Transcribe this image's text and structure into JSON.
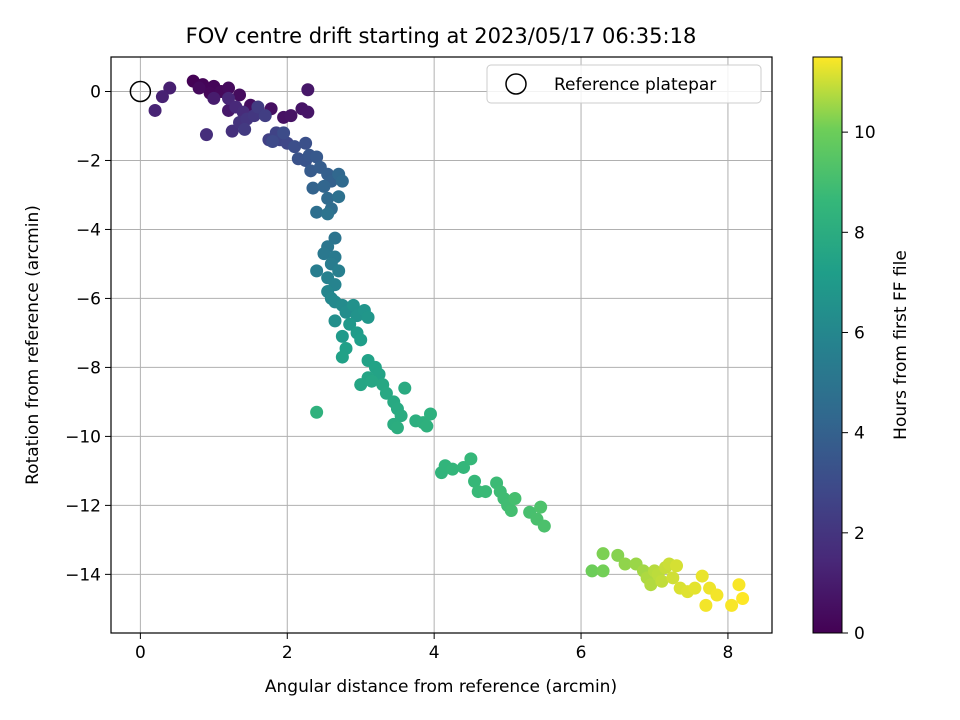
{
  "chart_data": {
    "type": "scatter",
    "title": "FOV centre drift starting at 2023/05/17 06:35:18",
    "xlabel": "Angular distance from reference (arcmin)",
    "ylabel": "Rotation from reference (arcmin)",
    "xlim": [
      -0.4,
      8.6
    ],
    "ylim": [
      -15.7,
      1.0
    ],
    "x_ticks": [
      0,
      2,
      4,
      6,
      8
    ],
    "y_ticks": [
      0,
      -2,
      -4,
      -6,
      -8,
      -10,
      -12,
      -14
    ],
    "x_tick_labels": [
      "0",
      "2",
      "4",
      "6",
      "8"
    ],
    "y_tick_labels": [
      "0",
      "−2",
      "−4",
      "−6",
      "−8",
      "−10",
      "−12",
      "−14"
    ],
    "grid": true,
    "colormap": "viridis",
    "colorbar": {
      "label": "Hours from first FF file",
      "range": [
        0,
        11.5
      ],
      "ticks": [
        0,
        2,
        4,
        6,
        8,
        10
      ],
      "tick_labels": [
        "0",
        "2",
        "4",
        "6",
        "8",
        "10"
      ]
    },
    "legend": {
      "placement": "top-right",
      "entries": [
        {
          "label": "Reference platepar",
          "marker": "open-circle"
        }
      ]
    },
    "reference_point": {
      "x": 0,
      "y": 0
    },
    "series": [
      {
        "marker": "filled-circle",
        "points": [
          [
            0.72,
            0.3,
            0.05
          ],
          [
            0.85,
            0.2,
            0.1
          ],
          [
            1.0,
            0.15,
            0.15
          ],
          [
            0.95,
            -0.05,
            0.2
          ],
          [
            1.1,
            0.0,
            0.25
          ],
          [
            0.8,
            0.1,
            0.3
          ],
          [
            1.2,
            0.1,
            0.35
          ],
          [
            1.35,
            -0.1,
            0.4
          ],
          [
            1.5,
            -0.4,
            0.45
          ],
          [
            1.6,
            -0.5,
            0.5
          ],
          [
            1.78,
            -0.5,
            0.55
          ],
          [
            1.95,
            -0.75,
            0.6
          ],
          [
            2.05,
            -0.7,
            0.65
          ],
          [
            2.2,
            -0.5,
            0.7
          ],
          [
            2.28,
            -0.6,
            0.75
          ],
          [
            2.28,
            0.05,
            0.8
          ],
          [
            1.2,
            -0.55,
            0.9
          ],
          [
            1.0,
            -0.2,
            1.0
          ],
          [
            0.4,
            0.1,
            1.1
          ],
          [
            0.3,
            -0.15,
            1.2
          ],
          [
            0.2,
            -0.55,
            1.3
          ],
          [
            1.2,
            -0.2,
            1.4
          ],
          [
            1.3,
            -0.45,
            1.5
          ],
          [
            1.4,
            -0.6,
            1.6
          ],
          [
            0.9,
            -1.25,
            1.7
          ],
          [
            1.25,
            -1.15,
            1.8
          ],
          [
            1.35,
            -0.9,
            1.9
          ],
          [
            1.45,
            -0.8,
            2.0
          ],
          [
            1.55,
            -0.7,
            2.1
          ],
          [
            1.42,
            -1.1,
            2.2
          ],
          [
            1.6,
            -0.45,
            2.3
          ],
          [
            1.7,
            -0.7,
            2.4
          ],
          [
            1.75,
            -1.4,
            2.5
          ],
          [
            1.85,
            -1.2,
            2.6
          ],
          [
            1.9,
            -1.4,
            2.7
          ],
          [
            2.0,
            -1.5,
            2.8
          ],
          [
            1.8,
            -1.45,
            2.9
          ],
          [
            1.95,
            -1.2,
            3.0
          ],
          [
            2.1,
            -1.6,
            3.1
          ],
          [
            2.25,
            -1.5,
            3.2
          ],
          [
            2.15,
            -1.95,
            3.3
          ],
          [
            2.25,
            -2.0,
            3.4
          ],
          [
            2.3,
            -1.85,
            3.5
          ],
          [
            2.4,
            -1.9,
            3.6
          ],
          [
            2.32,
            -2.3,
            3.7
          ],
          [
            2.45,
            -2.2,
            3.8
          ],
          [
            2.55,
            -2.4,
            3.9
          ],
          [
            2.6,
            -2.6,
            4.0
          ],
          [
            2.35,
            -2.8,
            4.1
          ],
          [
            2.5,
            -2.75,
            4.2
          ],
          [
            2.7,
            -2.4,
            4.3
          ],
          [
            2.75,
            -2.6,
            4.4
          ],
          [
            2.55,
            -3.1,
            4.5
          ],
          [
            2.6,
            -3.4,
            4.6
          ],
          [
            2.4,
            -3.5,
            4.7
          ],
          [
            2.7,
            -3.05,
            4.8
          ],
          [
            2.55,
            -3.55,
            4.9
          ],
          [
            2.65,
            -4.25,
            5.0
          ],
          [
            2.55,
            -4.5,
            5.1
          ],
          [
            2.5,
            -4.7,
            5.2
          ],
          [
            2.65,
            -4.8,
            5.3
          ],
          [
            2.6,
            -5.0,
            5.4
          ],
          [
            2.4,
            -5.2,
            5.5
          ],
          [
            2.7,
            -5.2,
            5.6
          ],
          [
            2.55,
            -5.4,
            5.7
          ],
          [
            2.65,
            -5.6,
            5.8
          ],
          [
            2.55,
            -5.8,
            5.9
          ],
          [
            2.6,
            -6.0,
            6.0
          ],
          [
            2.65,
            -6.1,
            6.1
          ],
          [
            2.75,
            -6.2,
            6.2
          ],
          [
            2.8,
            -6.4,
            6.3
          ],
          [
            2.65,
            -6.65,
            6.4
          ],
          [
            2.9,
            -6.2,
            6.5
          ],
          [
            2.95,
            -6.5,
            6.6
          ],
          [
            3.05,
            -6.35,
            6.7
          ],
          [
            3.1,
            -6.55,
            6.8
          ],
          [
            2.85,
            -6.75,
            6.9
          ],
          [
            2.75,
            -7.1,
            7.0
          ],
          [
            2.95,
            -7.0,
            7.1
          ],
          [
            3.0,
            -7.2,
            7.2
          ],
          [
            2.8,
            -7.45,
            7.3
          ],
          [
            2.75,
            -7.7,
            7.35
          ],
          [
            3.1,
            -7.8,
            7.4
          ],
          [
            3.2,
            -8.0,
            7.45
          ],
          [
            3.25,
            -8.2,
            7.5
          ],
          [
            3.1,
            -8.3,
            7.55
          ],
          [
            3.0,
            -8.5,
            7.6
          ],
          [
            3.15,
            -8.4,
            7.65
          ],
          [
            3.3,
            -8.5,
            7.7
          ],
          [
            3.35,
            -8.75,
            7.75
          ],
          [
            3.45,
            -9.0,
            7.8
          ],
          [
            3.5,
            -9.2,
            7.85
          ],
          [
            3.6,
            -8.6,
            7.9
          ],
          [
            3.55,
            -9.4,
            7.95
          ],
          [
            3.45,
            -9.65,
            8.0
          ],
          [
            3.5,
            -9.75,
            8.05
          ],
          [
            3.75,
            -9.55,
            8.1
          ],
          [
            3.85,
            -9.6,
            8.15
          ],
          [
            3.95,
            -9.35,
            8.2
          ],
          [
            3.9,
            -9.7,
            8.25
          ],
          [
            2.4,
            -9.3,
            8.3
          ],
          [
            4.1,
            -11.05,
            8.4
          ],
          [
            4.15,
            -10.85,
            8.45
          ],
          [
            4.25,
            -10.95,
            8.5
          ],
          [
            4.4,
            -10.9,
            8.55
          ],
          [
            4.5,
            -10.65,
            8.6
          ],
          [
            4.55,
            -11.3,
            8.65
          ],
          [
            4.6,
            -11.6,
            8.7
          ],
          [
            4.7,
            -11.6,
            8.75
          ],
          [
            4.85,
            -11.35,
            8.8
          ],
          [
            4.9,
            -11.6,
            8.85
          ],
          [
            4.95,
            -11.8,
            8.9
          ],
          [
            5.0,
            -12.0,
            8.95
          ],
          [
            5.05,
            -12.15,
            9.0
          ],
          [
            5.1,
            -11.8,
            9.05
          ],
          [
            5.3,
            -12.2,
            9.1
          ],
          [
            5.4,
            -12.4,
            9.15
          ],
          [
            5.5,
            -12.6,
            9.2
          ],
          [
            5.45,
            -12.05,
            9.25
          ],
          [
            6.15,
            -13.9,
            10.0
          ],
          [
            6.3,
            -13.9,
            10.1
          ],
          [
            6.3,
            -13.4,
            10.2
          ],
          [
            6.5,
            -13.45,
            10.3
          ],
          [
            6.6,
            -13.7,
            10.4
          ],
          [
            6.75,
            -13.7,
            10.5
          ],
          [
            6.85,
            -13.9,
            10.6
          ],
          [
            6.9,
            -14.1,
            10.7
          ],
          [
            6.95,
            -14.3,
            10.75
          ],
          [
            7.0,
            -13.9,
            10.8
          ],
          [
            7.05,
            -14.0,
            10.85
          ],
          [
            7.1,
            -14.2,
            10.9
          ],
          [
            7.15,
            -13.8,
            10.95
          ],
          [
            7.2,
            -13.7,
            11.0
          ],
          [
            7.25,
            -14.1,
            11.05
          ],
          [
            7.3,
            -13.75,
            11.1
          ],
          [
            7.35,
            -14.4,
            11.15
          ],
          [
            7.45,
            -14.5,
            11.2
          ],
          [
            7.55,
            -14.4,
            11.25
          ],
          [
            7.65,
            -14.05,
            11.3
          ],
          [
            7.75,
            -14.4,
            11.35
          ],
          [
            7.7,
            -14.9,
            11.4
          ],
          [
            7.85,
            -14.6,
            11.4
          ],
          [
            8.05,
            -14.9,
            11.45
          ],
          [
            8.15,
            -14.3,
            11.45
          ],
          [
            8.2,
            -14.7,
            11.5
          ]
        ]
      }
    ]
  }
}
